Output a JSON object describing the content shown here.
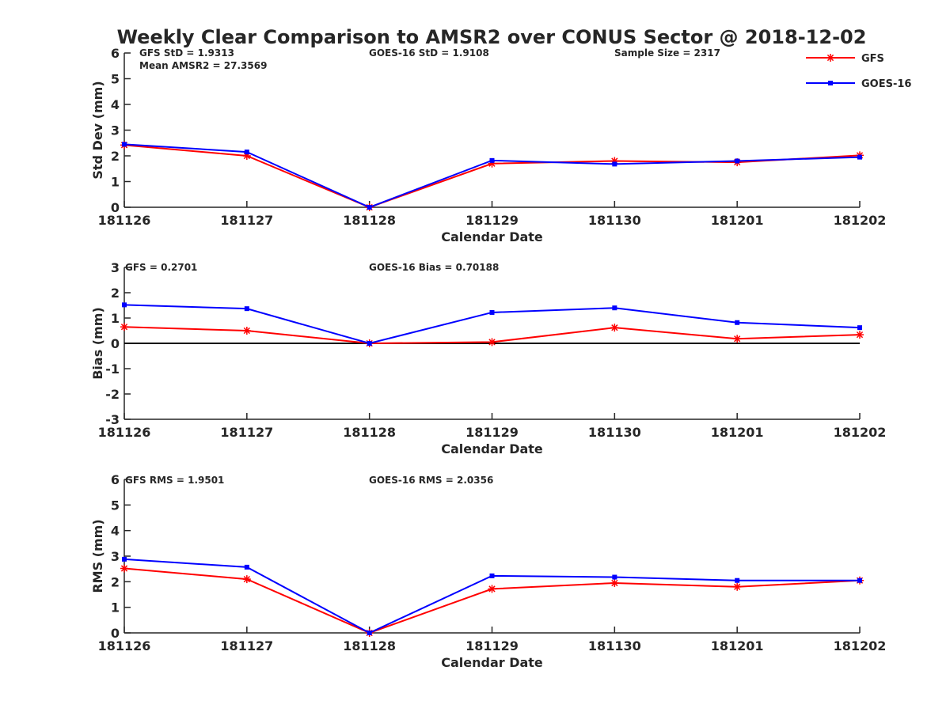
{
  "title": "Weekly Clear Comparison to AMSR2 over CONUS Sector @ 2018-12-02",
  "colors": {
    "gfs": "#ff0000",
    "goes": "#0000ff",
    "axis": "#262626",
    "zero_line": "#000000"
  },
  "legend": {
    "placement": "top-right",
    "items": [
      "GFS",
      "GOES-16"
    ]
  },
  "chart_data": [
    {
      "type": "line",
      "categories": [
        "181126",
        "181127",
        "181128",
        "181129",
        "181130",
        "181201",
        "181202"
      ],
      "xlabel": "Calendar Date",
      "ylabel": "Std Dev (mm)",
      "ylim": [
        0,
        6
      ],
      "yticks": [
        "0",
        "1",
        "2",
        "3",
        "4",
        "5",
        "6"
      ],
      "annotations": [
        "GFS StD = 1.9313",
        "Mean AMSR2 = 27.3569",
        "GOES-16 StD = 1.9108",
        "Sample Size = 2317"
      ],
      "series": [
        {
          "name": "GFS",
          "values": [
            2.42,
            2.0,
            0.0,
            1.7,
            1.8,
            1.75,
            2.02
          ]
        },
        {
          "name": "GOES-16",
          "values": [
            2.45,
            2.15,
            0.0,
            1.82,
            1.68,
            1.8,
            1.95
          ]
        }
      ]
    },
    {
      "type": "line",
      "categories": [
        "181126",
        "181127",
        "181128",
        "181129",
        "181130",
        "181201",
        "181202"
      ],
      "xlabel": "Calendar Date",
      "ylabel": "Bias (mm)",
      "ylim": [
        -3,
        3
      ],
      "yticks": [
        "-3",
        "-2",
        "-1",
        "0",
        "1",
        "2",
        "3"
      ],
      "zero_line": true,
      "annotations": [
        "GFS = 0.2701",
        "GOES-16 Bias  = 0.70188"
      ],
      "series": [
        {
          "name": "GFS",
          "values": [
            0.65,
            0.5,
            0.0,
            0.05,
            0.62,
            0.18,
            0.34
          ]
        },
        {
          "name": "GOES-16",
          "values": [
            1.52,
            1.37,
            0.0,
            1.22,
            1.4,
            0.82,
            0.62
          ]
        }
      ]
    },
    {
      "type": "line",
      "categories": [
        "181126",
        "181127",
        "181128",
        "181129",
        "181130",
        "181201",
        "181202"
      ],
      "xlabel": "Calendar Date",
      "ylabel": "RMS (mm)",
      "ylim": [
        0,
        6
      ],
      "yticks": [
        "0",
        "1",
        "2",
        "3",
        "4",
        "5",
        "6"
      ],
      "annotations": [
        "GFS RMS = 1.9501",
        "GOES-16 RMS = 2.0356"
      ],
      "series": [
        {
          "name": "GFS",
          "values": [
            2.52,
            2.1,
            0.0,
            1.72,
            1.95,
            1.8,
            2.05
          ]
        },
        {
          "name": "GOES-16",
          "values": [
            2.88,
            2.57,
            0.0,
            2.23,
            2.18,
            2.05,
            2.05
          ]
        }
      ]
    }
  ]
}
